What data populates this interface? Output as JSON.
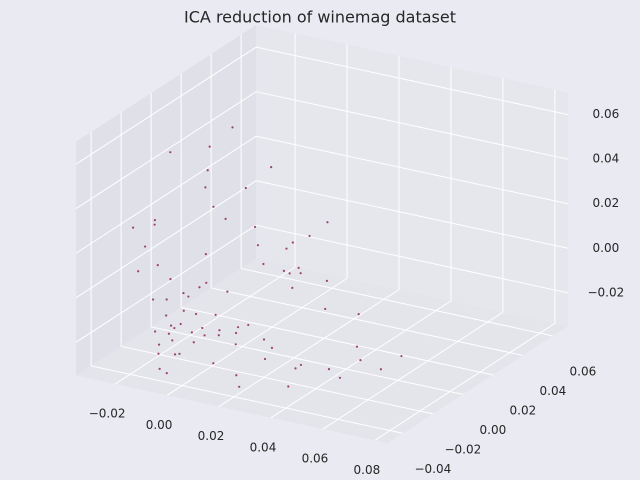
{
  "chart_data": {
    "type": "scatter3d",
    "title": "ICA reduction of winemag dataset",
    "color": "#8b1a4a",
    "xlim": [
      -0.035,
      0.085
    ],
    "ylim": [
      -0.05,
      0.07
    ],
    "zlim": [
      -0.035,
      0.07
    ],
    "xticks": [
      {
        "value": -0.02,
        "label": "−0.02"
      },
      {
        "value": 0,
        "label": "0.00"
      },
      0.02,
      0.04,
      0.06,
      0.08
    ],
    "yticks": [
      {
        "value": -0.04,
        "label": "−0.04"
      },
      {
        "value": -0.02,
        "label": "−0.02"
      },
      {
        "value": 0,
        "label": "0.00"
      },
      0.02,
      0.04,
      0.06
    ],
    "zticks": [
      {
        "value": -0.02,
        "label": "−0.02"
      },
      {
        "value": 0,
        "label": "0.00"
      },
      0.02,
      0.04,
      0.06
    ],
    "grid": true,
    "x": [
      -0.01,
      -0.008,
      -0.012,
      -0.005,
      -0.015,
      -0.009,
      -0.003,
      -0.011,
      -0.007,
      -0.013,
      -0.006,
      -0.002,
      -0.014,
      -0.01,
      -0.004,
      0.0,
      -0.016,
      -0.012,
      -0.008,
      -0.005,
      0.002,
      0.004,
      -0.001,
      0.006,
      0.008,
      0.01,
      0.003,
      0.012,
      0.015,
      0.018,
      0.02,
      0.025,
      0.03,
      0.035,
      0.04,
      0.022,
      0.028,
      0.014,
      0.009,
      0.005,
      -0.018,
      -0.02,
      -0.022,
      -0.017,
      -0.019,
      -0.024,
      -0.021,
      -0.015,
      -0.013,
      -0.009,
      -0.006,
      0.0,
      0.004,
      0.008,
      -0.01,
      -0.014,
      -0.02,
      -0.025,
      0.045,
      0.05,
      0.055,
      0.06,
      0.038,
      0.032,
      0.016,
      0.011,
      0.007,
      -0.003,
      -0.007,
      -0.011,
      0.001,
      0.013,
      0.019,
      -0.016,
      -0.023,
      0.024,
      0.042,
      0.065,
      0.07,
      -0.004
    ],
    "y": [
      -0.03,
      -0.025,
      -0.028,
      -0.022,
      -0.032,
      -0.035,
      -0.027,
      -0.02,
      -0.033,
      -0.024,
      -0.018,
      -0.03,
      -0.026,
      -0.038,
      -0.034,
      -0.025,
      -0.02,
      -0.015,
      -0.01,
      -0.036,
      -0.03,
      -0.022,
      -0.04,
      -0.028,
      -0.033,
      -0.02,
      -0.015,
      -0.025,
      -0.03,
      -0.035,
      -0.02,
      -0.028,
      -0.032,
      -0.025,
      -0.03,
      -0.04,
      -0.015,
      -0.01,
      -0.005,
      0.0,
      -0.025,
      -0.03,
      -0.02,
      0.005,
      0.01,
      0.02,
      0.03,
      0.015,
      0.025,
      0.035,
      0.04,
      0.045,
      0.05,
      0.02,
      -0.042,
      -0.045,
      -0.038,
      -0.015,
      -0.02,
      -0.01,
      -0.03,
      -0.025,
      -0.035,
      0.0,
      0.01,
      0.02,
      -0.008,
      -0.045,
      -0.012,
      0.0,
      0.03,
      -0.038,
      -0.005,
      -0.028,
      -0.008,
      0.015,
      0.005,
      -0.02,
      -0.015,
      -0.048
    ],
    "z": [
      -0.015,
      -0.01,
      -0.02,
      -0.012,
      -0.018,
      -0.008,
      -0.022,
      -0.005,
      -0.014,
      -0.025,
      -0.002,
      -0.016,
      -0.006,
      -0.02,
      -0.011,
      -0.019,
      0.0,
      -0.009,
      -0.004,
      -0.024,
      -0.013,
      -0.017,
      -0.021,
      -0.007,
      -0.026,
      -0.015,
      -0.003,
      -0.02,
      -0.012,
      -0.028,
      -0.018,
      -0.022,
      -0.014,
      -0.025,
      -0.02,
      -0.03,
      0.005,
      0.01,
      0.015,
      0.02,
      0.008,
      0.018,
      0.025,
      0.03,
      0.035,
      0.04,
      0.045,
      0.012,
      0.022,
      0.028,
      -0.01,
      -0.005,
      0.0,
      0.005,
      0.002,
      0.015,
      0.03,
      0.02,
      -0.025,
      -0.018,
      -0.022,
      -0.015,
      -0.028,
      -0.01,
      0.0,
      -0.008,
      -0.02,
      -0.028,
      0.01,
      0.025,
      -0.015,
      -0.01,
      0.006,
      -0.03,
      0.05,
      -0.006,
      -0.012,
      -0.02,
      -0.015,
      -0.025
    ]
  }
}
